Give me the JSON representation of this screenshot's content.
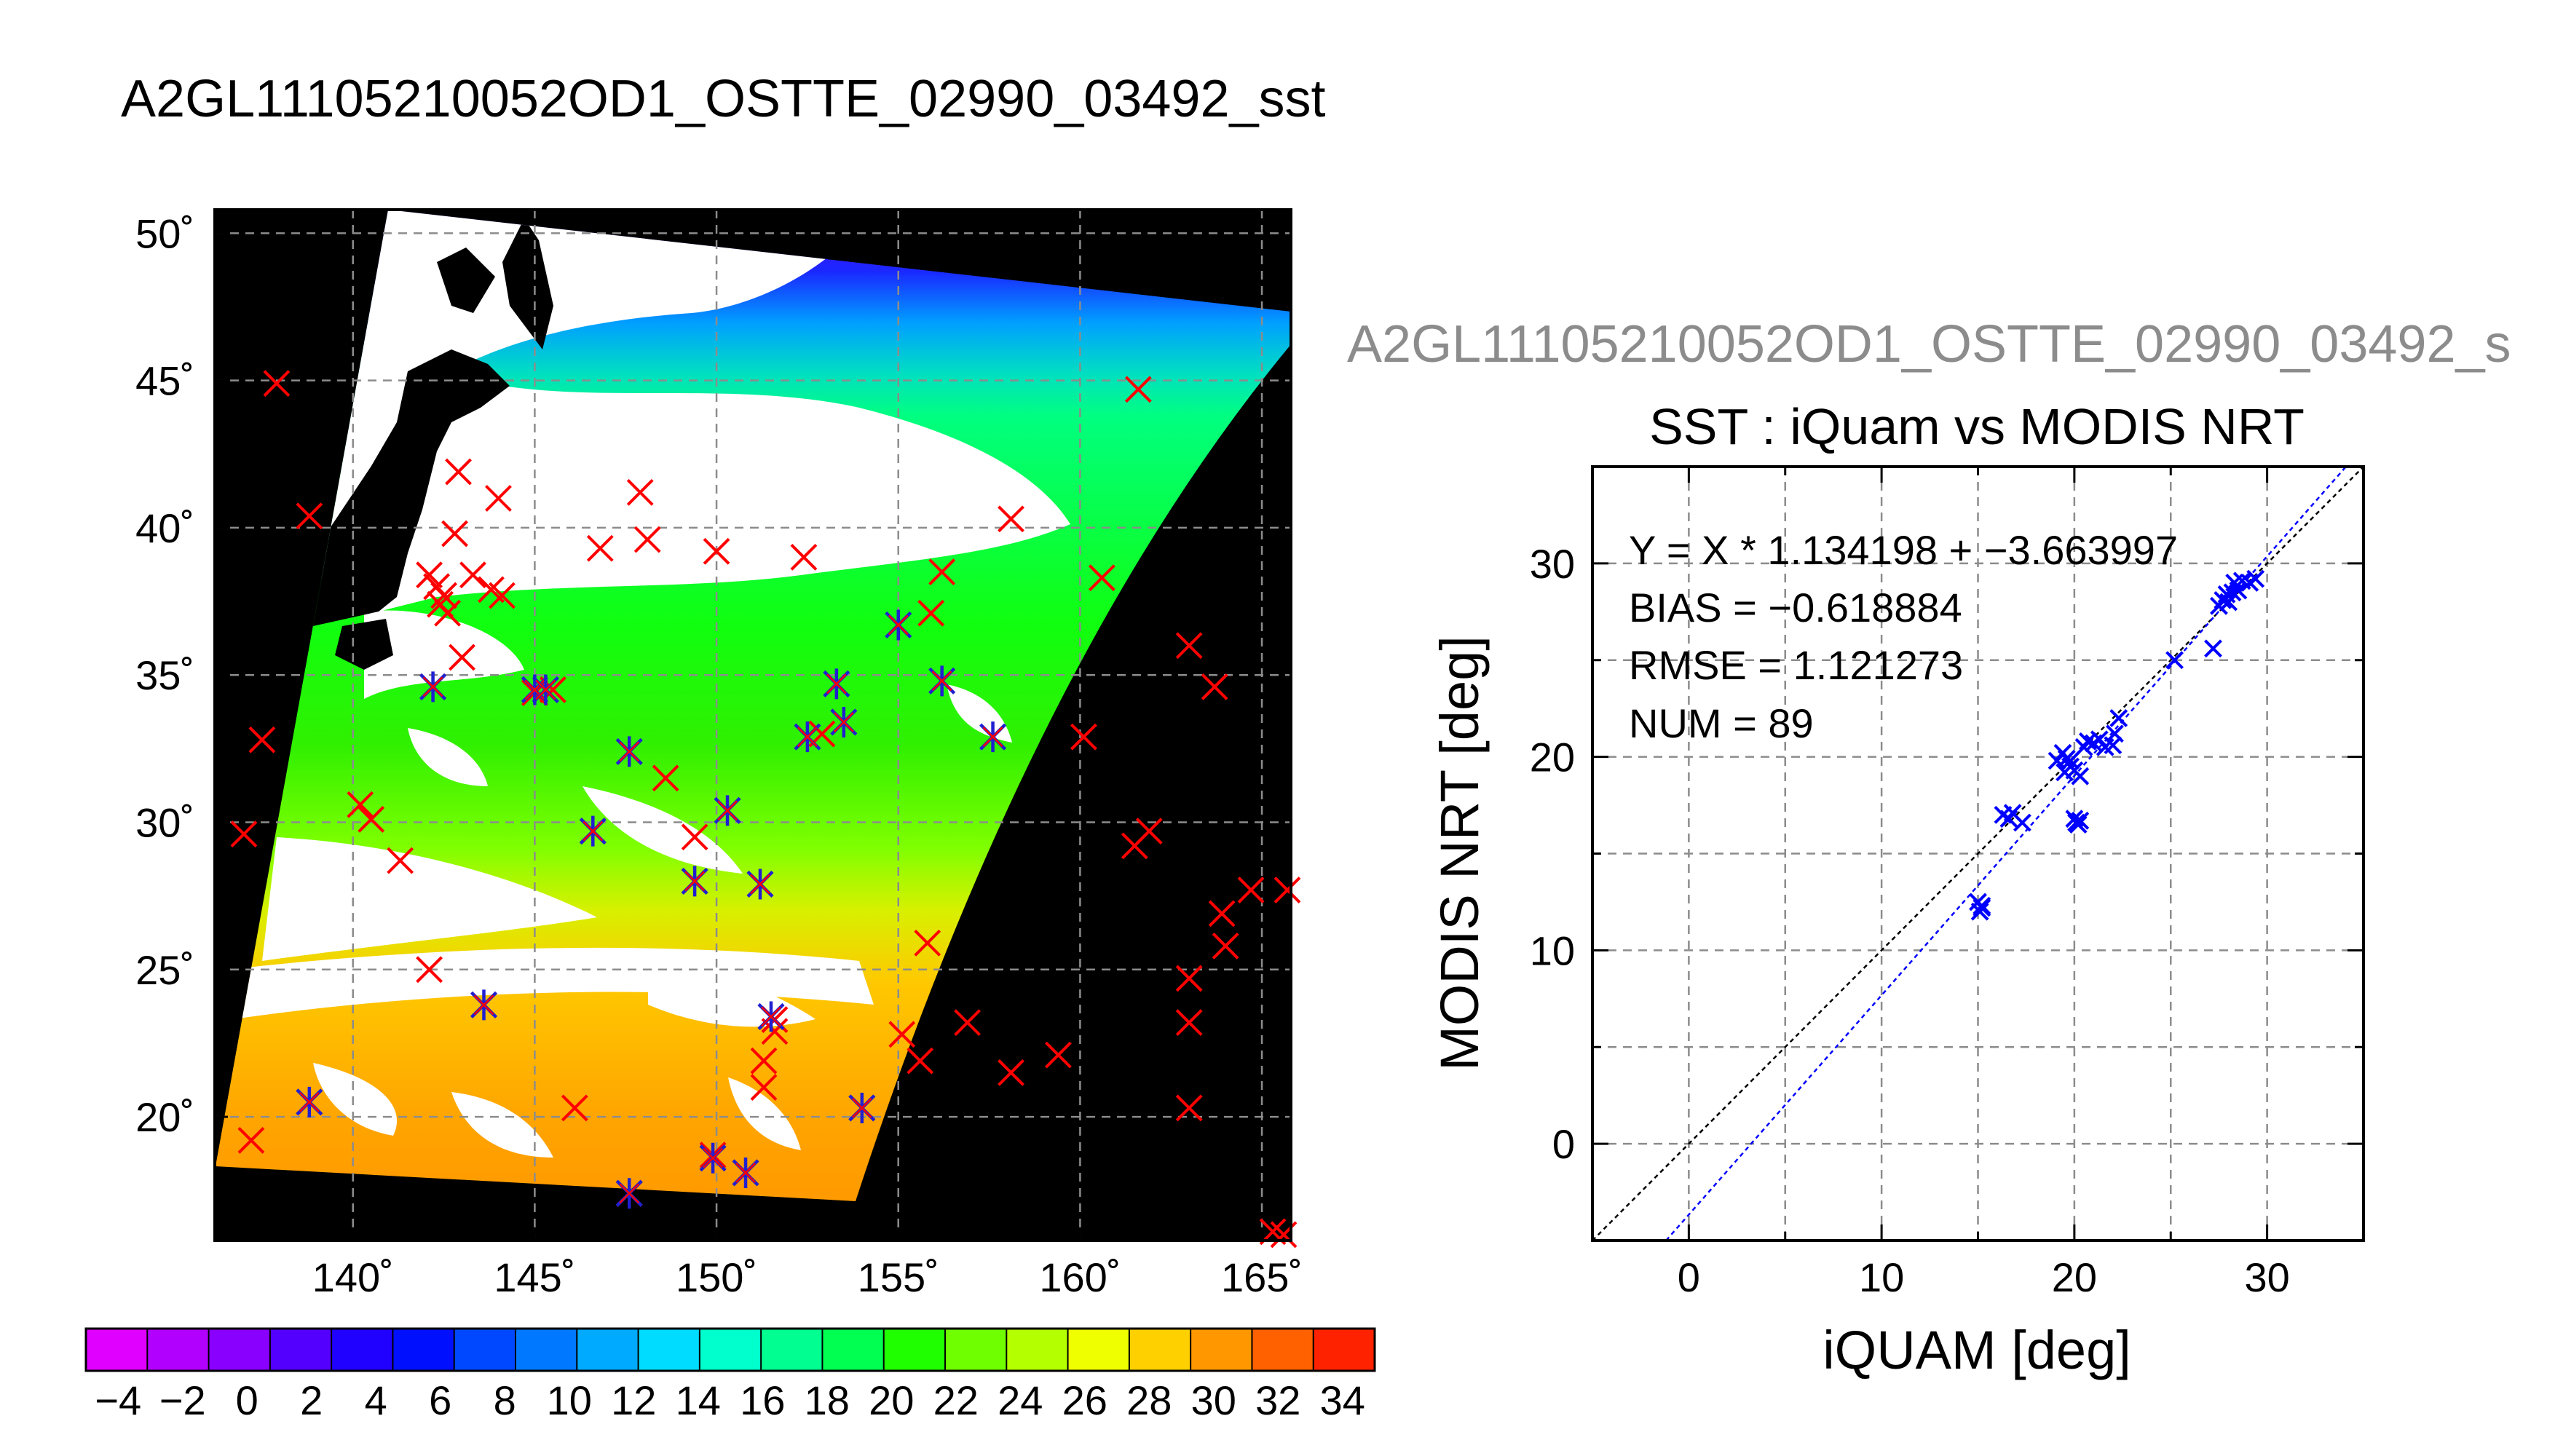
{
  "figure": {
    "main_title": "A2GL11105210052OD1_OSTTE_02990_03492_sst",
    "secondary_title": "A2GL11105210052OD1_OSTTE_02990_03492_s"
  },
  "colors": {
    "background": "#ffffff",
    "map_background": "#000000",
    "land": "#000000",
    "clouds": "#ffffff",
    "grid": "#8c8c8c",
    "matchup_marker": "#ff0000",
    "valid_marker": "#2020d0",
    "fit_line": "#0000ff",
    "identity_line": "#000000",
    "secondary_title": "#8c8c8c"
  },
  "map": {
    "x_tick_labels": [
      "140˚",
      "145˚",
      "150˚",
      "155˚",
      "160˚",
      "165˚"
    ],
    "y_tick_labels": [
      "20˚",
      "25˚",
      "30˚",
      "35˚",
      "40˚",
      "45˚",
      "50˚"
    ],
    "lon_range": [
      136.2,
      165.8
    ],
    "lat_range": [
      15.8,
      50.8
    ],
    "matchups_x": [
      [
        137.2,
        19.2
      ],
      [
        137.0,
        29.6
      ],
      [
        137.5,
        32.8
      ],
      [
        137.9,
        44.9
      ],
      [
        138.8,
        40.4
      ],
      [
        140.2,
        30.6
      ],
      [
        140.5,
        30.1
      ],
      [
        141.3,
        28.7
      ],
      [
        142.1,
        25.0
      ],
      [
        142.1,
        38.4
      ],
      [
        142.3,
        38.0
      ],
      [
        142.4,
        37.4
      ],
      [
        142.6,
        37.1
      ],
      [
        142.5,
        37.7
      ],
      [
        142.9,
        41.9
      ],
      [
        142.8,
        39.8
      ],
      [
        143.0,
        35.6
      ],
      [
        143.3,
        38.4
      ],
      [
        143.6,
        23.8
      ],
      [
        143.8,
        37.9
      ],
      [
        144.1,
        37.7
      ],
      [
        144.0,
        41.0
      ],
      [
        145.5,
        34.5
      ],
      [
        146.1,
        20.3
      ],
      [
        146.8,
        39.3
      ],
      [
        147.9,
        41.2
      ],
      [
        148.1,
        39.6
      ],
      [
        148.6,
        31.5
      ],
      [
        149.4,
        29.5
      ],
      [
        150.0,
        39.2
      ],
      [
        152.4,
        39.0
      ],
      [
        151.6,
        22.9
      ],
      [
        151.3,
        21.9
      ],
      [
        151.6,
        23.3
      ],
      [
        151.3,
        21.0
      ],
      [
        155.1,
        22.8
      ],
      [
        155.6,
        21.9
      ],
      [
        155.8,
        25.9
      ],
      [
        156.2,
        38.5
      ],
      [
        156.9,
        23.2
      ],
      [
        155.9,
        37.1
      ],
      [
        158.1,
        21.5
      ],
      [
        158.1,
        40.3
      ],
      [
        159.4,
        22.1
      ],
      [
        160.1,
        32.9
      ],
      [
        160.6,
        38.3
      ],
      [
        161.5,
        29.2
      ],
      [
        161.6,
        44.7
      ],
      [
        161.9,
        29.7
      ],
      [
        163.0,
        36.0
      ],
      [
        163.0,
        24.7
      ],
      [
        163.0,
        23.2
      ],
      [
        163.0,
        20.3
      ],
      [
        163.7,
        34.6
      ],
      [
        163.9,
        26.9
      ],
      [
        164.0,
        25.8
      ],
      [
        164.7,
        27.7
      ],
      [
        165.3,
        16.1
      ],
      [
        165.6,
        16.0
      ],
      [
        165.7,
        27.7
      ],
      [
        142.2,
        34.6
      ],
      [
        147.6,
        17.4
      ],
      [
        149.9,
        18.7
      ],
      [
        152.9,
        33.0
      ],
      [
        145.0,
        34.4
      ]
    ],
    "matchups_star": [
      [
        138.8,
        20.5
      ],
      [
        142.2,
        34.6
      ],
      [
        143.6,
        23.8
      ],
      [
        145.0,
        34.5
      ],
      [
        145.3,
        34.5
      ],
      [
        146.6,
        29.7
      ],
      [
        147.6,
        32.4
      ],
      [
        147.6,
        17.4
      ],
      [
        149.4,
        28.0
      ],
      [
        149.9,
        18.6
      ],
      [
        150.3,
        30.4
      ],
      [
        150.8,
        18.1
      ],
      [
        151.2,
        27.9
      ],
      [
        151.5,
        23.4
      ],
      [
        152.5,
        32.9
      ],
      [
        153.3,
        34.7
      ],
      [
        153.5,
        33.4
      ],
      [
        154.0,
        20.3
      ],
      [
        155.0,
        36.7
      ],
      [
        156.2,
        34.8
      ],
      [
        157.6,
        32.9
      ]
    ]
  },
  "colorbar": {
    "tick_labels": [
      "−4",
      "−2",
      "0",
      "2",
      "4",
      "6",
      "8",
      "10",
      "12",
      "14",
      "16",
      "18",
      "20",
      "22",
      "24",
      "26",
      "28",
      "30",
      "32",
      "34"
    ],
    "range": [
      -5,
      35
    ],
    "colors": [
      "#e000ff",
      "#b200ff",
      "#8a00ff",
      "#5400ff",
      "#2000ff",
      "#0010ff",
      "#0048ff",
      "#0078ff",
      "#00aaff",
      "#00dcff",
      "#00ffcc",
      "#00ff90",
      "#00ff50",
      "#20ff00",
      "#70ff00",
      "#b4ff00",
      "#f0ff00",
      "#ffd000",
      "#ff9800",
      "#ff6000",
      "#ff2200"
    ]
  },
  "chart_data": {
    "type": "scatter",
    "title": "SST : iQuam vs MODIS NRT",
    "xlabel": "iQUAM [deg]",
    "ylabel": "MODIS NRT [deg]",
    "xlim": [
      -5,
      35
    ],
    "ylim": [
      -5,
      35
    ],
    "x_ticks": [
      "0",
      "10",
      "20",
      "30"
    ],
    "y_ticks": [
      "0",
      "10",
      "20",
      "30"
    ],
    "grid": true,
    "annotations": [
      "Y = X * 1.134198 + −3.663997",
      "BIAS = −0.618884",
      "RMSE = 1.121273",
      "NUM = 89"
    ],
    "fit": {
      "slope": 1.134198,
      "intercept": -3.663997
    },
    "points": [
      [
        15.0,
        12.5
      ],
      [
        15.2,
        12.2
      ],
      [
        15.1,
        12.0
      ],
      [
        16.3,
        17.0
      ],
      [
        16.8,
        17.1
      ],
      [
        16.6,
        16.8
      ],
      [
        17.3,
        16.6
      ],
      [
        19.1,
        19.8
      ],
      [
        19.4,
        20.2
      ],
      [
        19.5,
        19.2
      ],
      [
        19.6,
        19.9
      ],
      [
        19.8,
        19.5
      ],
      [
        20.0,
        16.8
      ],
      [
        20.1,
        16.6
      ],
      [
        20.3,
        16.7
      ],
      [
        20.0,
        19.3
      ],
      [
        20.3,
        19.0
      ],
      [
        20.5,
        20.5
      ],
      [
        20.7,
        20.8
      ],
      [
        21.0,
        20.7
      ],
      [
        21.3,
        20.9
      ],
      [
        21.6,
        20.5
      ],
      [
        22.0,
        20.6
      ],
      [
        22.3,
        22.0
      ],
      [
        22.1,
        21.2
      ],
      [
        25.2,
        25.0
      ],
      [
        27.2,
        25.6
      ],
      [
        27.5,
        27.8
      ],
      [
        27.7,
        28.1
      ],
      [
        27.9,
        28.4
      ],
      [
        28.0,
        28.0
      ],
      [
        28.3,
        29.0
      ],
      [
        28.5,
        28.6
      ],
      [
        28.7,
        29.1
      ],
      [
        29.1,
        29.0
      ],
      [
        29.4,
        29.2
      ],
      [
        28.2,
        28.5
      ],
      [
        19.8,
        19.8
      ],
      [
        20.2,
        16.5
      ],
      [
        15.2,
        12.3
      ]
    ]
  }
}
